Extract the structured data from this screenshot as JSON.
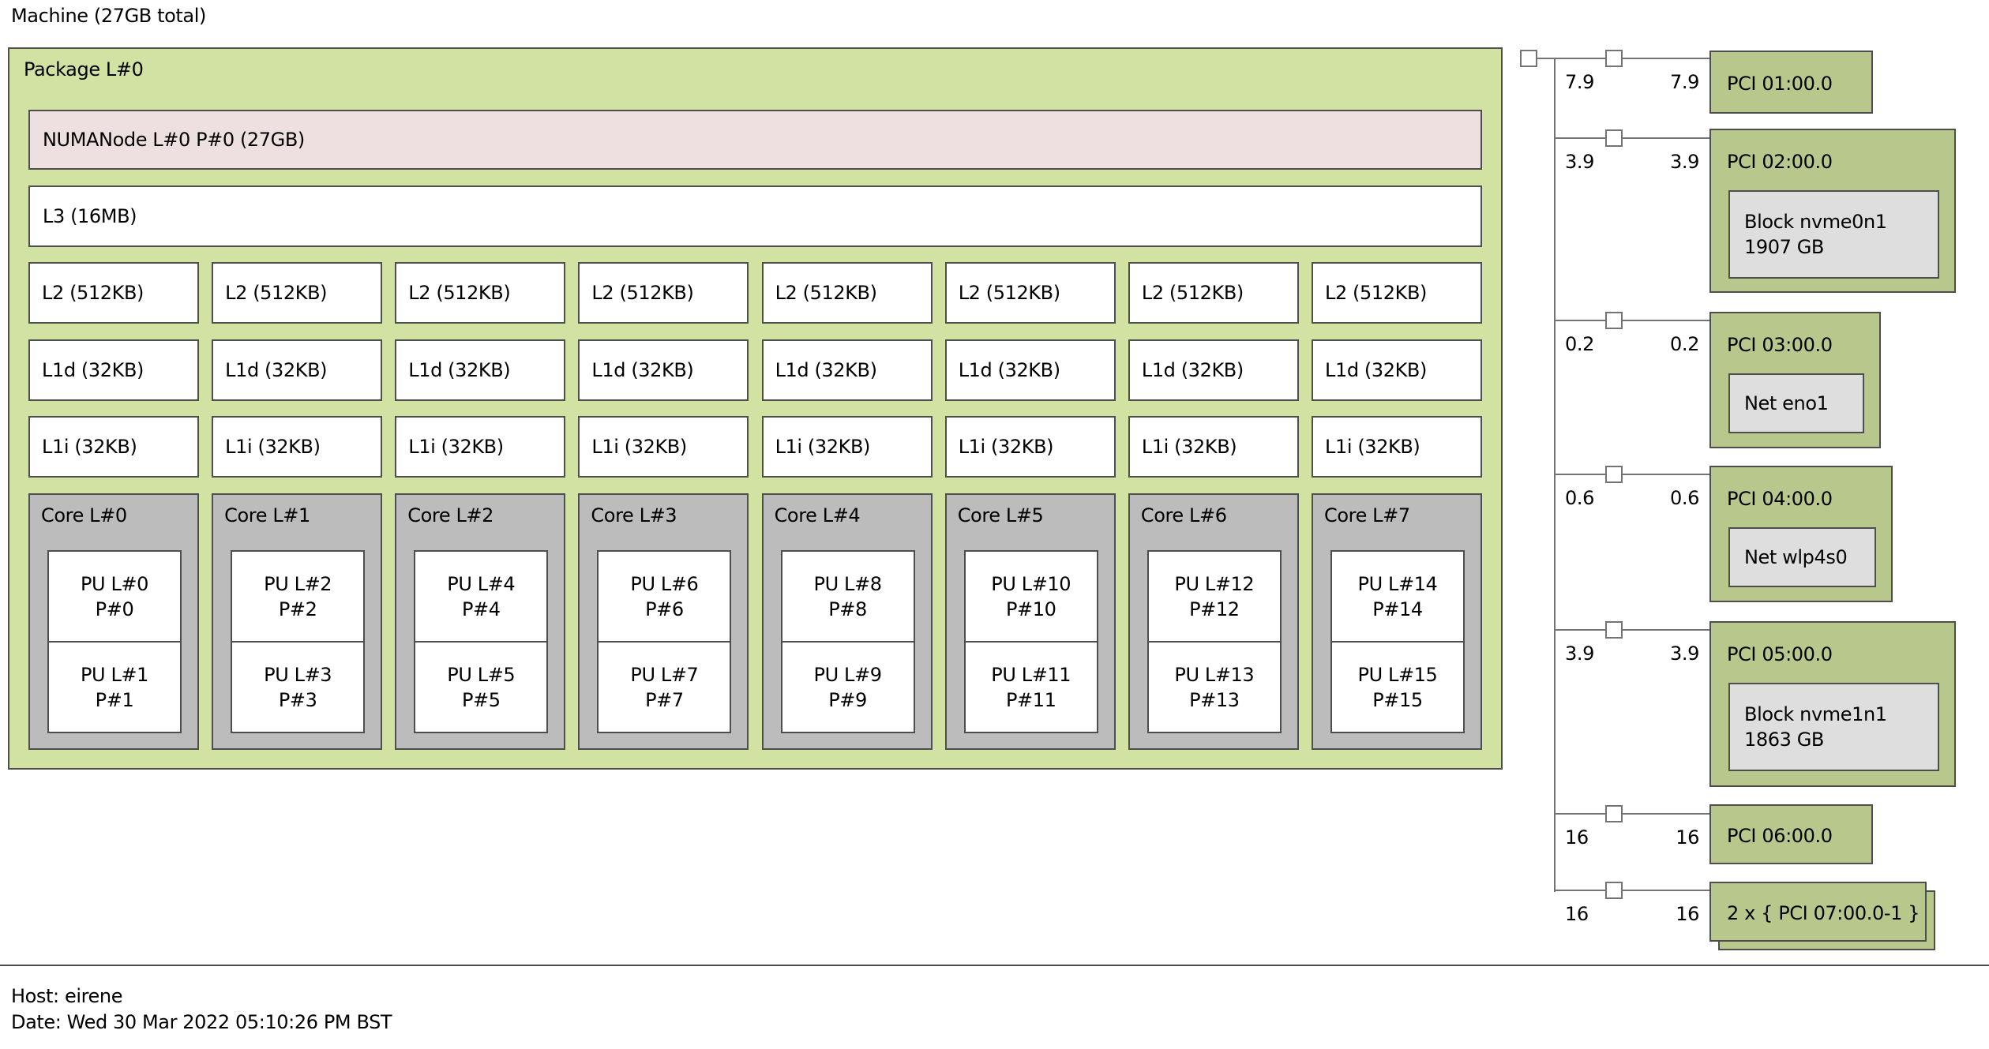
{
  "machine": {
    "title": "Machine (27GB total)"
  },
  "package": {
    "label": "Package L#0",
    "numanode": "NUMANode L#0 P#0 (27GB)",
    "l3": "L3 (16MB)",
    "l2_row": [
      "L2 (512KB)",
      "L2 (512KB)",
      "L2 (512KB)",
      "L2 (512KB)",
      "L2 (512KB)",
      "L2 (512KB)",
      "L2 (512KB)",
      "L2 (512KB)"
    ],
    "l1d_row": [
      "L1d (32KB)",
      "L1d (32KB)",
      "L1d (32KB)",
      "L1d (32KB)",
      "L1d (32KB)",
      "L1d (32KB)",
      "L1d (32KB)",
      "L1d (32KB)"
    ],
    "l1i_row": [
      "L1i (32KB)",
      "L1i (32KB)",
      "L1i (32KB)",
      "L1i (32KB)",
      "L1i (32KB)",
      "L1i (32KB)",
      "L1i (32KB)",
      "L1i (32KB)"
    ],
    "cores": [
      {
        "label": "Core L#0",
        "pus": [
          {
            "l": "PU L#0",
            "p": "P#0"
          },
          {
            "l": "PU L#1",
            "p": "P#1"
          }
        ]
      },
      {
        "label": "Core L#1",
        "pus": [
          {
            "l": "PU L#2",
            "p": "P#2"
          },
          {
            "l": "PU L#3",
            "p": "P#3"
          }
        ]
      },
      {
        "label": "Core L#2",
        "pus": [
          {
            "l": "PU L#4",
            "p": "P#4"
          },
          {
            "l": "PU L#5",
            "p": "P#5"
          }
        ]
      },
      {
        "label": "Core L#3",
        "pus": [
          {
            "l": "PU L#6",
            "p": "P#6"
          },
          {
            "l": "PU L#7",
            "p": "P#7"
          }
        ]
      },
      {
        "label": "Core L#4",
        "pus": [
          {
            "l": "PU L#8",
            "p": "P#8"
          },
          {
            "l": "PU L#9",
            "p": "P#9"
          }
        ]
      },
      {
        "label": "Core L#5",
        "pus": [
          {
            "l": "PU L#10",
            "p": "P#10"
          },
          {
            "l": "PU L#11",
            "p": "P#11"
          }
        ]
      },
      {
        "label": "Core L#6",
        "pus": [
          {
            "l": "PU L#12",
            "p": "P#12"
          },
          {
            "l": "PU L#13",
            "p": "P#13"
          }
        ]
      },
      {
        "label": "Core L#7",
        "pus": [
          {
            "l": "PU L#14",
            "p": "P#14"
          },
          {
            "l": "PU L#15",
            "p": "P#15"
          }
        ]
      }
    ]
  },
  "pci_tree": {
    "branches": [
      {
        "left_speed": "7.9",
        "right_speed": "7.9",
        "label": "PCI 01:00.0",
        "device": null
      },
      {
        "left_speed": "3.9",
        "right_speed": "3.9",
        "label": "PCI 02:00.0",
        "device": [
          "Block nvme0n1",
          "1907 GB"
        ]
      },
      {
        "left_speed": "0.2",
        "right_speed": "0.2",
        "label": "PCI 03:00.0",
        "device": [
          "Net eno1"
        ]
      },
      {
        "left_speed": "0.6",
        "right_speed": "0.6",
        "label": "PCI 04:00.0",
        "device": [
          "Net wlp4s0"
        ]
      },
      {
        "left_speed": "3.9",
        "right_speed": "3.9",
        "label": "PCI 05:00.0",
        "device": [
          "Block nvme1n1",
          "1863 GB"
        ]
      },
      {
        "left_speed": "16",
        "right_speed": "16",
        "label": "PCI 06:00.0",
        "device": null
      },
      {
        "left_speed": "16",
        "right_speed": "16",
        "label": "2 x { PCI 07:00.0-1 }",
        "device": null,
        "stacked": true
      }
    ]
  },
  "legend": {
    "host": "Host: eirene",
    "date": "Date: Wed 30 Mar 2022 05:10:26 PM BST"
  },
  "colors": {
    "package_green": "#d2e2a2",
    "pci_green": "#b8c88d",
    "numa_pink": "#eee0e0",
    "core_gray": "#bcbcbc",
    "device_gray": "#dedede",
    "box_border": "#4e4e4e",
    "tree_line": "#737373"
  }
}
